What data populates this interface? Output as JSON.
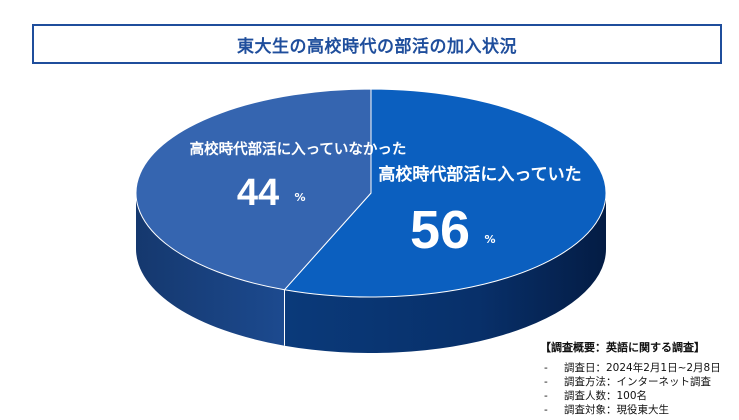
{
  "chart_data": {
    "type": "pie",
    "title": "東大生の高校時代の部活の加入状況",
    "slices": [
      {
        "label": "高校時代部活に入っていた",
        "value": 56,
        "unit": "%",
        "color": "#0b5fbf"
      },
      {
        "label": "高校時代部活に入っていなかった",
        "value": 44,
        "unit": "%",
        "color": "#3565b0"
      }
    ],
    "style": "3d"
  },
  "survey": {
    "heading": "【調査概要：英語に関する調査】",
    "items": [
      "調査日：2024年2月1日~2月8日",
      "調査方法：インターネット調査",
      "調査人数：100名",
      "調査対象：現役東大生"
    ]
  }
}
